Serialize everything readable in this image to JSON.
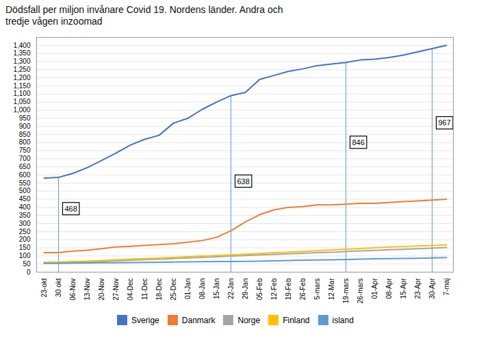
{
  "chart_data": {
    "type": "line",
    "title": "Dödsfall per miljon invånare Covid 19. Nordens länder. Andra och\ntredje vågen inzoomad",
    "categories": [
      "23-okt",
      "30 okt",
      "06-Nov",
      "13-Nov",
      "20-Nov",
      "27-Nov",
      "04-Dec",
      "11-Dec",
      "18-Dec",
      "25-Dec",
      "01-Jan",
      "08-Jan",
      "15-Jan",
      "22-Jan",
      "29-Jan",
      "05-Feb",
      "12-Feb",
      "19-Feb",
      "26-Feb",
      "5-mars",
      "12-Mar",
      "19-mars",
      "26-mars",
      "01-Apr",
      "08-Apr",
      "15-Apr",
      "23-Apr",
      "30-Apr",
      "7-maj"
    ],
    "series": [
      {
        "name": "Sverige",
        "color": "#4472C4",
        "values": [
          580,
          585,
          610,
          645,
          690,
          735,
          785,
          820,
          845,
          920,
          950,
          1005,
          1050,
          1090,
          1110,
          1190,
          1215,
          1240,
          1255,
          1275,
          1285,
          1295,
          1310,
          1315,
          1325,
          1340,
          1360,
          1380,
          1400
        ]
      },
      {
        "name": "Danmark",
        "color": "#ED7D31",
        "values": [
          120,
          120,
          130,
          135,
          145,
          155,
          160,
          165,
          170,
          175,
          185,
          195,
          215,
          255,
          310,
          355,
          385,
          400,
          405,
          415,
          415,
          420,
          425,
          425,
          430,
          435,
          440,
          445,
          450
        ]
      },
      {
        "name": "Norge",
        "color": "#A5A5A5",
        "values": [
          55,
          57,
          60,
          63,
          66,
          70,
          74,
          77,
          80,
          84,
          88,
          91,
          95,
          99,
          103,
          107,
          110,
          113,
          116,
          120,
          123,
          127,
          131,
          134,
          138,
          141,
          145,
          148,
          152
        ]
      },
      {
        "name": "Finland",
        "color": "#FFC000",
        "values": [
          60,
          62,
          65,
          68,
          72,
          76,
          80,
          84,
          87,
          91,
          95,
          99,
          103,
          107,
          111,
          115,
          120,
          124,
          128,
          132,
          137,
          141,
          146,
          150,
          155,
          158,
          162,
          165,
          168
        ]
      },
      {
        "name": "island",
        "color": "#5B9BD5",
        "values": [
          55,
          55,
          56,
          57,
          58,
          58,
          59,
          60,
          61,
          62,
          63,
          64,
          65,
          66,
          67,
          68,
          70,
          72,
          74,
          75,
          76,
          78,
          80,
          82,
          83,
          85,
          86,
          88,
          90
        ]
      }
    ],
    "annotations": [
      {
        "text": "468",
        "x": "30 okt",
        "y": 390,
        "line_to": 585,
        "color": "#5B9BD5"
      },
      {
        "text": "638",
        "x": "22-Jan",
        "y": 560,
        "line_to": 1090,
        "color": "#5B9BD5"
      },
      {
        "text": "846",
        "x": "19-mars",
        "y": 800,
        "line_to": 1295,
        "color": "#5B9BD5"
      },
      {
        "text": "967",
        "x": "30-Apr",
        "y": 920,
        "line_to": 1380,
        "color": "#5B9BD5"
      }
    ],
    "ylim": [
      0,
      1450
    ],
    "yticks": [
      0,
      50,
      100,
      150,
      200,
      250,
      300,
      350,
      400,
      450,
      500,
      550,
      600,
      650,
      700,
      750,
      800,
      850,
      900,
      950,
      1000,
      1050,
      1100,
      1150,
      1200,
      1250,
      1300,
      1350,
      1400
    ],
    "grid": true,
    "legend": "bottom"
  }
}
